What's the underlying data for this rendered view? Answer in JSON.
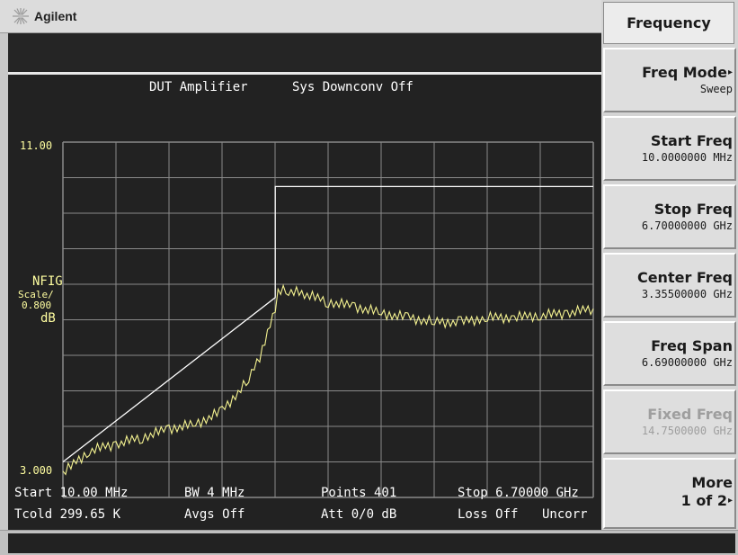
{
  "brand": {
    "name": "Agilent",
    "icon": "agilent-spark-icon"
  },
  "display": {
    "title_left": "DUT Amplifier",
    "title_right": "Sys Downconv Off",
    "ref_top": "11.00",
    "ref_bottom": "3.000",
    "param": "NFIG",
    "scale_label": "Scale/",
    "scale_value": "0.800",
    "scale_unit": "dB",
    "footer": {
      "start": "Start 10.00 MHz",
      "tcold": "Tcold 299.65 K",
      "bw": "BW 4 MHz",
      "avgs": "Avgs Off",
      "points": "Points 401",
      "att": "Att 0/0 dB",
      "stop": "Stop 6.70000 GHz",
      "loss": "Loss Off",
      "corr": "Uncorr"
    },
    "colors": {
      "background": "#222222",
      "grid": "#8a8a8a",
      "trace": "#f4f290",
      "limit": "#ffffff"
    }
  },
  "softkeys": {
    "menu_title": "Frequency",
    "keys": [
      {
        "label": "Freq Mode",
        "value": "Sweep",
        "submenu": true,
        "enabled": true
      },
      {
        "label": "Start Freq",
        "value": "10.0000000 MHz",
        "submenu": false,
        "enabled": true
      },
      {
        "label": "Stop Freq",
        "value": "6.70000000 GHz",
        "submenu": false,
        "enabled": true
      },
      {
        "label": "Center Freq",
        "value": "3.35500000 GHz",
        "submenu": false,
        "enabled": true
      },
      {
        "label": "Freq Span",
        "value": "6.69000000 GHz",
        "submenu": false,
        "enabled": true
      },
      {
        "label": "Fixed Freq",
        "value": "14.7500000 GHz",
        "submenu": false,
        "enabled": false
      },
      {
        "label": "More",
        "value": "1 of 2",
        "submenu": true,
        "enabled": true
      }
    ]
  },
  "chart_data": {
    "type": "line",
    "xlabel": "",
    "ylabel": "NFIG",
    "xlim": [
      10,
      6700
    ],
    "ylim": [
      3.0,
      11.0
    ],
    "x_unit": "MHz",
    "y_unit": "dB",
    "grid": true,
    "series": [
      {
        "x": [
          10,
          345,
          680,
          1014,
          1349,
          1684,
          2019,
          2354,
          2526,
          2688,
          2723,
          2856,
          3023,
          3358,
          3693,
          4027,
          4362,
          4697,
          5032,
          5367,
          5702,
          6036,
          6371,
          6700
        ],
        "y": [
          3.55,
          4.05,
          4.2,
          4.35,
          4.55,
          4.65,
          4.95,
          5.65,
          6.3,
          7.25,
          7.65,
          7.65,
          7.6,
          7.4,
          7.3,
          7.15,
          7.05,
          6.95,
          6.95,
          7.05,
          7.05,
          7.1,
          7.15,
          7.25
        ]
      },
      {
        "x": [
          10,
          2688,
          2688,
          6700
        ],
        "y": [
          3.8,
          7.5,
          10.0,
          10.0
        ]
      }
    ]
  }
}
